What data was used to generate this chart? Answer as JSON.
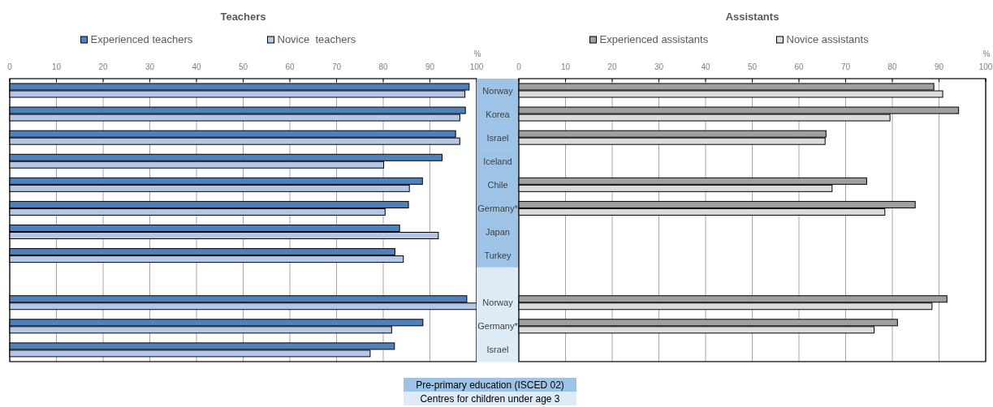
{
  "chart_data": [
    {
      "type": "bar",
      "orientation": "horizontal",
      "title": "Teachers",
      "xlabel": "%",
      "categories": [
        "Norway",
        "Korea",
        "Israel",
        "Iceland",
        "Chile",
        "Germany*",
        "Japan",
        "Turkey",
        null,
        "Norway",
        "Germany*",
        "Israel"
      ],
      "series": [
        {
          "name": "Experienced teachers",
          "color": "#4f81bd",
          "values": [
            98.4,
            97.6,
            95.5,
            92.6,
            88.4,
            85.4,
            83.5,
            82.5,
            null,
            97.9,
            88.5,
            82.4
          ]
        },
        {
          "name": "Novice  teachers",
          "color": "#b4c7e7",
          "values": [
            97.5,
            96.4,
            96.4,
            80.1,
            85.6,
            80.4,
            91.8,
            84.3,
            null,
            100,
            81.8,
            77.2
          ]
        }
      ],
      "xlim": [
        0,
        100
      ],
      "xticks": [
        0,
        10,
        20,
        30,
        40,
        50,
        60,
        70,
        80,
        90,
        100
      ],
      "grid": "x",
      "legend": "top",
      "annotations": [
        "Pre-primary education (ISCED 02)",
        "Centres for children under age 3"
      ]
    },
    {
      "type": "bar",
      "orientation": "horizontal",
      "title": "Assistants",
      "xlabel": "%",
      "categories": [
        null,
        null,
        null,
        null,
        null,
        null,
        null,
        null,
        null,
        null,
        null,
        null
      ],
      "series": [
        {
          "name": "Experienced assistants",
          "color": "#a0a0a0",
          "values": [
            88.9,
            94.2,
            65.8,
            null,
            74.5,
            84.9,
            null,
            null,
            null,
            91.7,
            81.1,
            null
          ]
        },
        {
          "name": "Novice assistants",
          "color": "#dcdcdc",
          "values": [
            90.8,
            79.5,
            65.6,
            null,
            67.1,
            78.4,
            null,
            null,
            null,
            88.5,
            76.1,
            null
          ]
        }
      ],
      "xlim": [
        0,
        100
      ],
      "xticks": [
        0,
        10,
        20,
        30,
        40,
        50,
        60,
        70,
        80,
        90,
        100
      ],
      "grid": "x",
      "legend": "top",
      "tick_labels": "x"
    }
  ]
}
